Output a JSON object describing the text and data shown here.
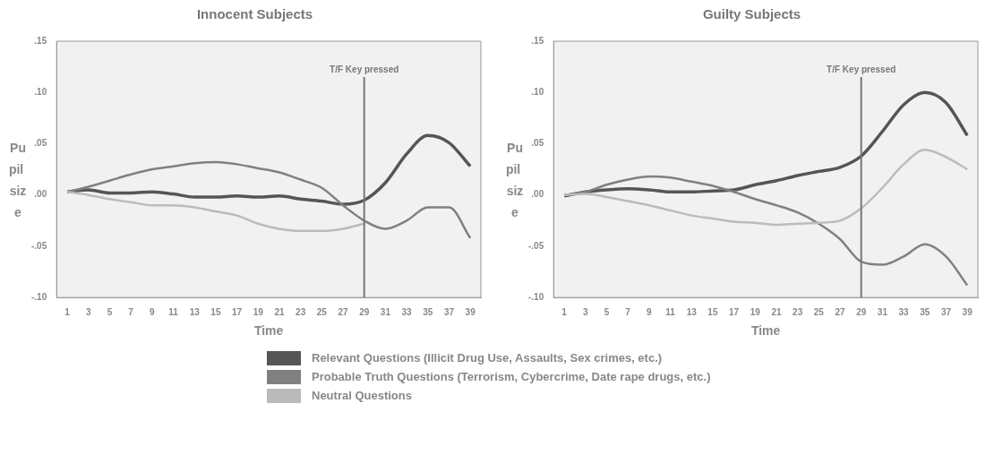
{
  "chart_data": [
    {
      "type": "line",
      "title": "Innocent Subjects",
      "xlabel": "Time",
      "ylabel": "Pupil size",
      "x": [
        1,
        3,
        5,
        7,
        9,
        11,
        13,
        15,
        17,
        19,
        21,
        23,
        25,
        27,
        29,
        31,
        33,
        35,
        37,
        39
      ],
      "series": [
        {
          "name": "Relevant Questions (Illicit Drug Use, Assaults, Sex crimes, etc.)",
          "color": "#555555",
          "values": [
            0.003,
            0.005,
            0.002,
            0.002,
            0.003,
            0.001,
            -0.002,
            -0.002,
            -0.001,
            -0.002,
            -0.001,
            -0.004,
            -0.006,
            -0.009,
            -0.005,
            0.012,
            0.04,
            0.058,
            0.051,
            0.028
          ]
        },
        {
          "name": "Probable Truth Questions (Terrorism, Cybercrime, Date rape drugs, etc.)",
          "color": "#808080",
          "values": [
            0.003,
            0.008,
            0.014,
            0.02,
            0.025,
            0.028,
            0.031,
            0.032,
            0.03,
            0.026,
            0.022,
            0.015,
            0.007,
            -0.01,
            -0.025,
            -0.033,
            -0.025,
            -0.012,
            -0.012,
            -0.042
          ]
        },
        {
          "name": "Neutral Questions",
          "color": "#bbbbbb",
          "values": [
            0.003,
            0.0,
            -0.004,
            -0.007,
            -0.01,
            -0.01,
            -0.012,
            -0.016,
            -0.02,
            -0.028,
            -0.033,
            -0.035,
            -0.035,
            -0.033,
            -0.028,
            null,
            null,
            null,
            null,
            null
          ]
        }
      ],
      "xlim": [
        0,
        40
      ],
      "xticks": [
        1,
        3,
        5,
        7,
        9,
        11,
        13,
        15,
        17,
        19,
        21,
        23,
        25,
        27,
        29,
        31,
        33,
        35,
        37,
        39
      ],
      "ylim": [
        -0.1,
        0.15
      ],
      "yticks": [
        {
          "value": -0.1,
          "label": "-.10"
        },
        {
          "value": -0.05,
          "label": "-.05"
        },
        {
          "value": 0,
          "label": ".00"
        },
        {
          "value": 0.05,
          "label": ".05"
        },
        {
          "value": 0.1,
          "label": ".10"
        },
        {
          "value": 0.15,
          "label": ".15"
        }
      ],
      "ref_lines": [
        {
          "axis": "x",
          "value": 29,
          "label": "T/F Key pressed",
          "color": "#777777"
        }
      ],
      "grid": false,
      "legend": "bottom",
      "marker": "none",
      "line_style": "solid"
    },
    {
      "type": "line",
      "title": "Guilty Subjects",
      "xlabel": "Time",
      "ylabel": "Pupil size",
      "x": [
        1,
        3,
        5,
        7,
        9,
        11,
        13,
        15,
        17,
        19,
        21,
        23,
        25,
        27,
        29,
        31,
        33,
        35,
        37,
        39
      ],
      "series": [
        {
          "color": "#555555",
          "values": [
            -0.001,
            0.003,
            0.005,
            0.006,
            0.005,
            0.003,
            0.003,
            0.004,
            0.005,
            0.01,
            0.014,
            0.019,
            0.023,
            0.027,
            0.038,
            0.062,
            0.088,
            0.1,
            0.09,
            0.058
          ]
        },
        {
          "color": "#808080",
          "values": [
            0.0,
            0.003,
            0.01,
            0.015,
            0.018,
            0.017,
            0.013,
            0.009,
            0.003,
            -0.004,
            -0.01,
            -0.017,
            -0.028,
            -0.043,
            -0.065,
            -0.068,
            -0.06,
            -0.048,
            -0.06,
            -0.088
          ]
        },
        {
          "color": "#bbbbbb",
          "values": [
            0.0,
            0.001,
            -0.002,
            -0.006,
            -0.01,
            -0.015,
            -0.02,
            -0.023,
            -0.026,
            -0.027,
            -0.029,
            -0.028,
            -0.027,
            -0.025,
            -0.013,
            0.007,
            0.03,
            0.044,
            0.037,
            0.025
          ]
        }
      ],
      "xlim": [
        0,
        40
      ],
      "xticks": [
        1,
        3,
        5,
        7,
        9,
        11,
        13,
        15,
        17,
        19,
        21,
        23,
        25,
        27,
        29,
        31,
        33,
        35,
        37,
        39
      ],
      "ylim": [
        -0.1,
        0.15
      ],
      "yticks": [
        {
          "value": -0.1,
          "label": "-.10"
        },
        {
          "value": -0.05,
          "label": "-.05"
        },
        {
          "value": 0,
          "label": ".00"
        },
        {
          "value": 0.05,
          "label": ".05"
        },
        {
          "value": 0.1,
          "label": ".10"
        },
        {
          "value": 0.15,
          "label": ".15"
        }
      ],
      "ref_lines": [
        {
          "axis": "x",
          "value": 29,
          "label": "T/F Key pressed",
          "color": "#777777"
        }
      ],
      "grid": false,
      "marker": "none",
      "line_style": "solid"
    }
  ]
}
